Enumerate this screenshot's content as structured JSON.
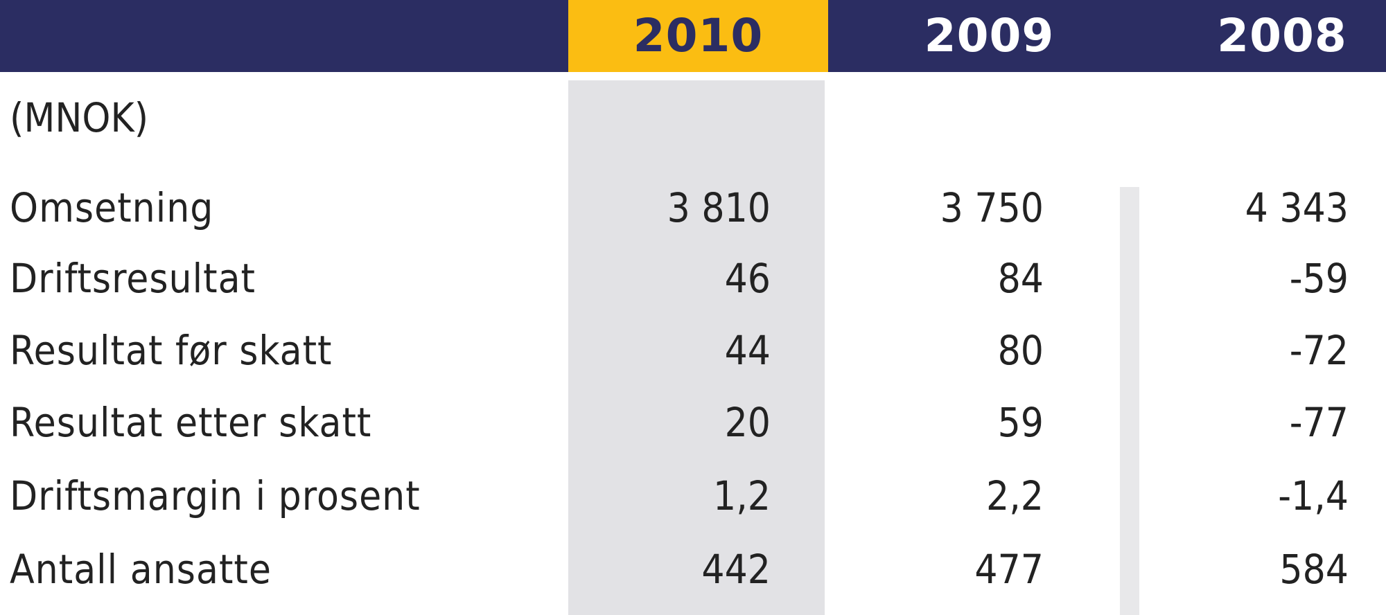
{
  "table": {
    "years": [
      "2010",
      "2009",
      "2008"
    ],
    "unit": "(MNOK)",
    "rows": [
      {
        "label": "Omsetning",
        "values": [
          "3 810",
          "3 750",
          "4 343"
        ]
      },
      {
        "label": "Driftsresultat",
        "values": [
          "46",
          "84",
          "-59"
        ]
      },
      {
        "label": "Resultat før skatt",
        "values": [
          "44",
          "80",
          "-72"
        ]
      },
      {
        "label": "Resultat etter skatt",
        "values": [
          "20",
          "59",
          "-77"
        ]
      },
      {
        "label": "Driftsmargin i prosent",
        "values": [
          "1,2",
          "2,2",
          "-1,4"
        ]
      },
      {
        "label": "Antall ansatte",
        "values": [
          "442",
          "477",
          "584"
        ]
      }
    ]
  },
  "colors": {
    "header_bg": "#2b2d62",
    "highlight_year": "#fbbd12",
    "highlight_column": "#e2e2e5"
  }
}
